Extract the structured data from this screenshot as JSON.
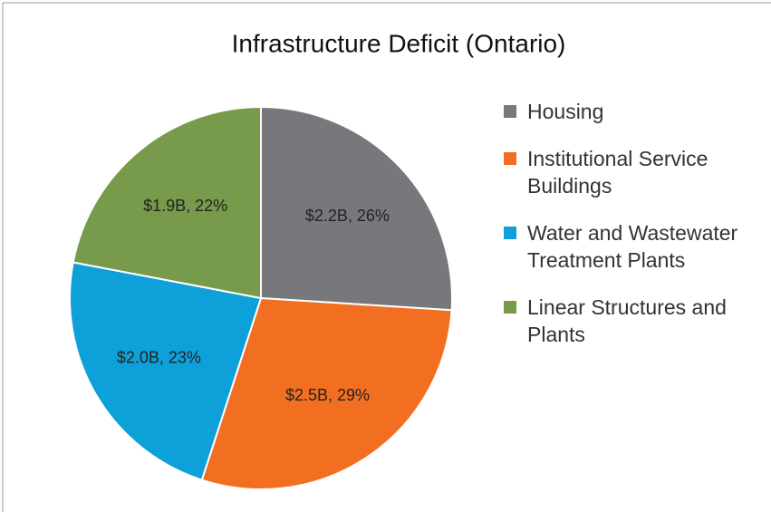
{
  "chart_data": {
    "type": "pie",
    "title": "Infrastructure Deficit (Ontario)",
    "categories": [
      "Housing",
      "Institutional Service Buildings",
      "Water and Wastewater Treatment Plants",
      "Linear Structures and Plants"
    ],
    "values": [
      26,
      29,
      23,
      22
    ],
    "value_labels": [
      "$2.2B, 26%",
      "$2.5B, 29%",
      "$2.0B, 23%",
      "$1.9B, 22%"
    ],
    "colors": [
      "#77787b",
      "#f26f21",
      "#0ea0d9",
      "#779a4b"
    ],
    "legend": "right"
  }
}
